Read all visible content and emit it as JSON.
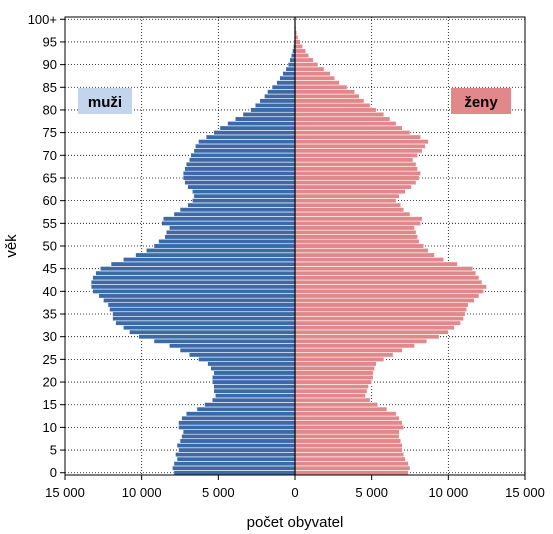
{
  "chart_data": {
    "type": "bar",
    "orientation": "horizontal",
    "subtype": "population-pyramid",
    "xlabel": "počet obyvatel",
    "ylabel": "věk",
    "x_tick_labels": [
      "15 000",
      "10 000",
      "5 000",
      "0",
      "5 000",
      "10 000",
      "15 000"
    ],
    "y_tick_labels": [
      "0",
      "5",
      "10",
      "15",
      "20",
      "25",
      "30",
      "35",
      "40",
      "45",
      "50",
      "55",
      "60",
      "65",
      "70",
      "75",
      "80",
      "85",
      "90",
      "95",
      "100+"
    ],
    "xlim": [
      -15000,
      15000
    ],
    "ylim": [
      0,
      100
    ],
    "ages": [
      0,
      1,
      2,
      3,
      4,
      5,
      6,
      7,
      8,
      9,
      10,
      11,
      12,
      13,
      14,
      15,
      16,
      17,
      18,
      19,
      20,
      21,
      22,
      23,
      24,
      25,
      26,
      27,
      28,
      29,
      30,
      31,
      32,
      33,
      34,
      35,
      36,
      37,
      38,
      39,
      40,
      41,
      42,
      43,
      44,
      45,
      46,
      47,
      48,
      49,
      50,
      51,
      52,
      53,
      54,
      55,
      56,
      57,
      58,
      59,
      60,
      61,
      62,
      63,
      64,
      65,
      66,
      67,
      68,
      69,
      70,
      71,
      72,
      73,
      74,
      75,
      76,
      77,
      78,
      79,
      80,
      81,
      82,
      83,
      84,
      85,
      86,
      87,
      88,
      89,
      90,
      91,
      92,
      93,
      94,
      95,
      96,
      97,
      98,
      99,
      100
    ],
    "series": [
      {
        "name": "muži",
        "color": "#3c6aa8",
        "values": [
          7900,
          8000,
          7900,
          7700,
          7800,
          7600,
          7700,
          7500,
          7400,
          7300,
          7600,
          7600,
          7400,
          7100,
          6400,
          5900,
          5400,
          5200,
          5300,
          5300,
          5400,
          5400,
          5300,
          5500,
          5700,
          6300,
          6900,
          7500,
          8200,
          9200,
          10200,
          10800,
          11200,
          11700,
          11900,
          11900,
          12100,
          12200,
          12500,
          12800,
          13200,
          13300,
          13300,
          13200,
          13000,
          12700,
          12000,
          11200,
          10400,
          9700,
          9200,
          8900,
          8500,
          8400,
          8200,
          8700,
          8600,
          7900,
          7500,
          7000,
          6700,
          6600,
          6700,
          7000,
          7200,
          7300,
          7300,
          7200,
          7100,
          6900,
          6800,
          6600,
          6500,
          6300,
          5800,
          5300,
          4900,
          4400,
          3900,
          3400,
          2900,
          2600,
          2300,
          2000,
          1800,
          1500,
          1200,
          1000,
          800,
          600,
          450,
          350,
          250,
          170,
          110,
          70,
          40,
          25,
          15,
          10,
          15
        ],
        "total_label": "muži"
      },
      {
        "name": "ženy",
        "color": "#e2878a",
        "values": [
          7400,
          7500,
          7400,
          7200,
          7100,
          7000,
          7000,
          6900,
          6800,
          6800,
          7100,
          7000,
          6800,
          6600,
          6000,
          5400,
          4900,
          4600,
          4700,
          4800,
          5000,
          5100,
          5100,
          5200,
          5300,
          5800,
          6400,
          7000,
          7800,
          8600,
          9400,
          10000,
          10400,
          10800,
          11000,
          11100,
          11200,
          11300,
          11700,
          12000,
          12300,
          12500,
          12200,
          12000,
          11800,
          11600,
          10600,
          9700,
          9100,
          8700,
          8400,
          8100,
          8000,
          7900,
          7800,
          8200,
          8300,
          7500,
          7100,
          6900,
          6600,
          6800,
          7200,
          7600,
          7900,
          8100,
          8200,
          8000,
          7900,
          7700,
          8000,
          8300,
          8500,
          8700,
          8200,
          7500,
          7000,
          6600,
          6200,
          5800,
          5300,
          4900,
          4500,
          4200,
          3900,
          3400,
          2900,
          2600,
          2300,
          1900,
          1500,
          1200,
          900,
          700,
          500,
          350,
          200,
          120,
          70,
          40,
          60
        ],
        "total_label": "ženy"
      }
    ],
    "legend": [
      {
        "label": "muži",
        "position": "top-left",
        "background": "#c2d5ec"
      },
      {
        "label": "ženy",
        "position": "top-right",
        "background": "#e2878a"
      }
    ],
    "grid": {
      "x": true,
      "y": true,
      "style": "dotted"
    }
  }
}
